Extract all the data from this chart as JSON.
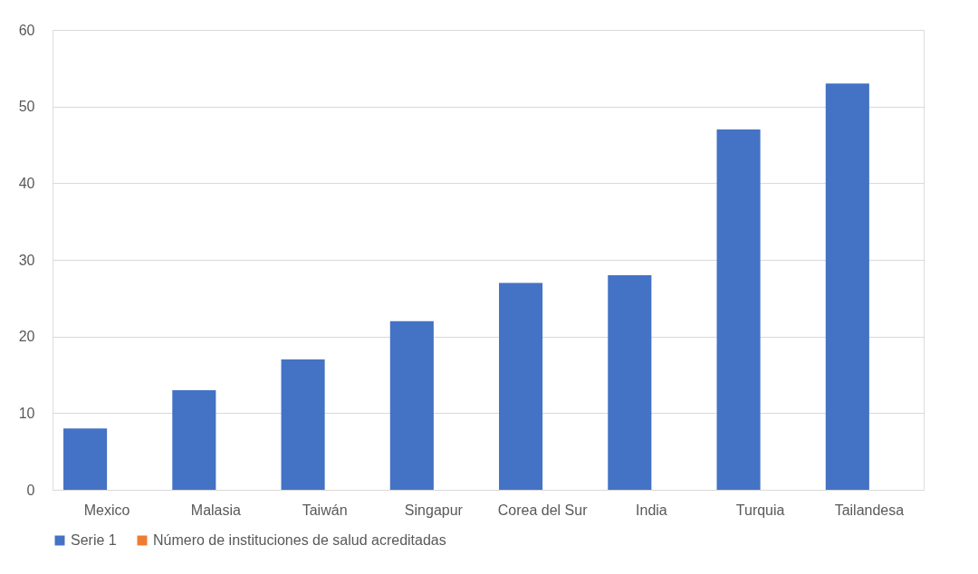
{
  "chart_data": {
    "type": "bar",
    "categories": [
      "Mexico",
      "Malasia",
      "Taiwán",
      "Singapur",
      "Corea del Sur",
      "India",
      "Turquia",
      "Tailandesa"
    ],
    "series": [
      {
        "name": "Serie 1",
        "color": "#4472c4",
        "values": [
          8,
          13,
          17,
          22,
          27,
          28,
          47,
          53
        ]
      },
      {
        "name": "Número de instituciones de salud acreditadas",
        "color": "#ed7d31",
        "values": [
          null,
          null,
          null,
          null,
          null,
          null,
          null,
          null
        ]
      }
    ],
    "ylim": [
      0,
      60
    ],
    "yticks": [
      0,
      10,
      20,
      30,
      40,
      50,
      60
    ],
    "grid": "y",
    "legend": "bottom"
  }
}
